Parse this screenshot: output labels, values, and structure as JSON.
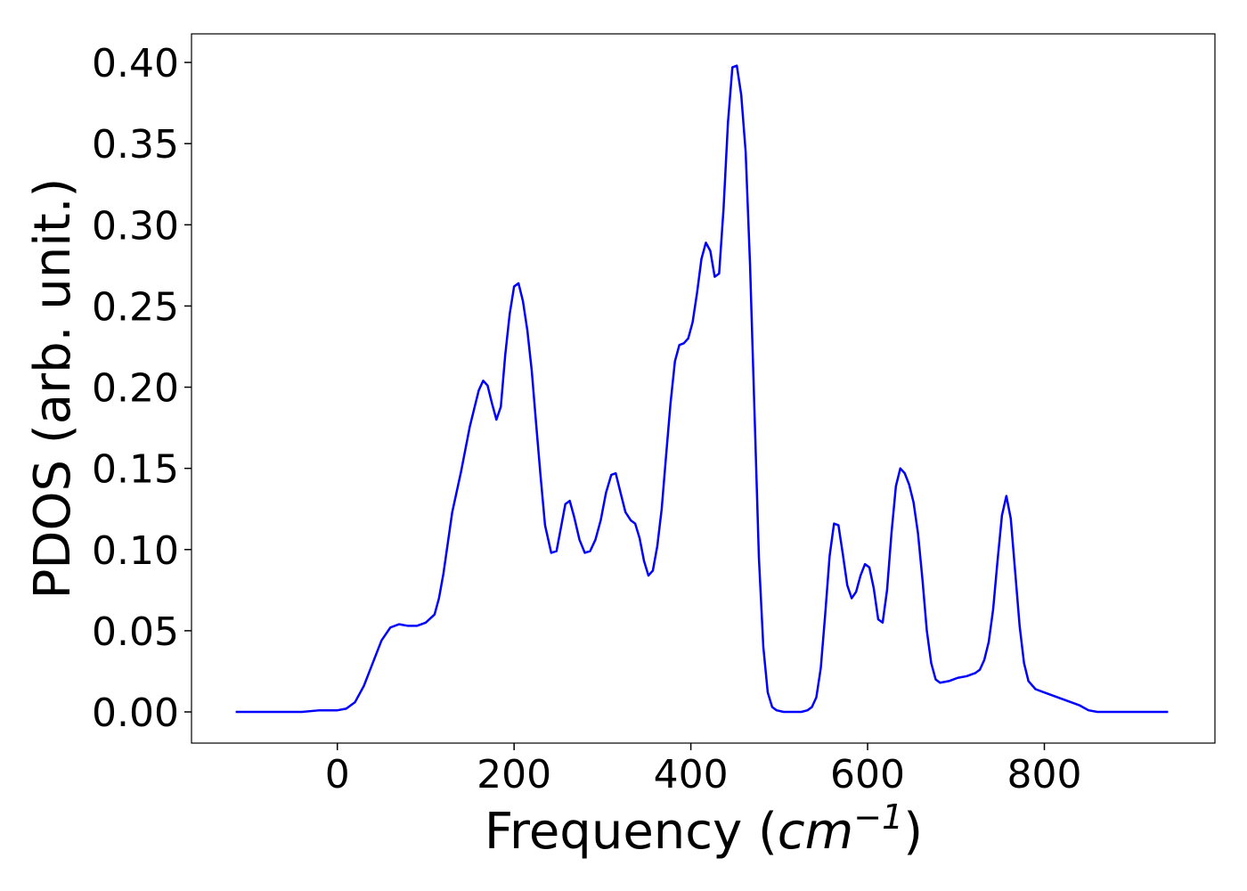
{
  "chart_data": {
    "type": "line",
    "xlabel": [
      "Frequency (",
      "cm",
      "−1",
      ")"
    ],
    "ylabel": "PDOS (arb. unit.)",
    "color": "#0000ff",
    "x": [
      -115,
      -40,
      -20,
      0,
      10,
      20,
      30,
      40,
      50,
      60,
      70,
      80,
      90,
      100,
      110,
      115,
      120,
      130,
      140,
      150,
      160,
      165,
      170,
      175,
      180,
      185,
      190,
      195,
      200,
      205,
      210,
      215,
      220,
      225,
      230,
      235,
      242,
      248,
      258,
      263,
      268,
      274,
      280,
      286,
      292,
      298,
      304,
      310,
      315,
      320,
      326,
      332,
      337,
      342,
      347,
      352,
      357,
      362,
      367,
      372,
      377,
      382,
      387,
      392,
      397,
      402,
      407,
      412,
      417,
      422,
      427,
      432,
      437,
      442,
      447,
      452,
      457,
      462,
      467,
      472,
      477,
      482,
      487,
      492,
      497,
      505,
      525,
      532,
      537,
      542,
      547,
      552,
      557,
      562,
      567,
      572,
      577,
      582,
      587,
      592,
      597,
      602,
      607,
      612,
      617,
      622,
      627,
      632,
      637,
      642,
      647,
      652,
      657,
      662,
      667,
      672,
      677,
      682,
      692,
      702,
      712,
      722,
      727,
      732,
      737,
      742,
      747,
      752,
      757,
      762,
      767,
      772,
      777,
      782,
      790,
      800,
      820,
      840,
      850,
      860,
      940
    ],
    "values": [
      0,
      0,
      0.001,
      0.001,
      0.002,
      0.006,
      0.016,
      0.03,
      0.044,
      0.052,
      0.054,
      0.053,
      0.053,
      0.055,
      0.06,
      0.07,
      0.085,
      0.123,
      0.148,
      0.176,
      0.198,
      0.204,
      0.201,
      0.19,
      0.18,
      0.188,
      0.22,
      0.245,
      0.262,
      0.264,
      0.253,
      0.235,
      0.21,
      0.177,
      0.145,
      0.115,
      0.098,
      0.099,
      0.128,
      0.13,
      0.12,
      0.106,
      0.098,
      0.099,
      0.106,
      0.118,
      0.135,
      0.146,
      0.147,
      0.136,
      0.123,
      0.118,
      0.116,
      0.107,
      0.093,
      0.084,
      0.087,
      0.102,
      0.125,
      0.158,
      0.19,
      0.216,
      0.226,
      0.227,
      0.23,
      0.24,
      0.258,
      0.279,
      0.289,
      0.284,
      0.268,
      0.27,
      0.31,
      0.363,
      0.397,
      0.398,
      0.38,
      0.345,
      0.275,
      0.185,
      0.095,
      0.04,
      0.012,
      0.003,
      0.001,
      0,
      0,
      0.001,
      0.003,
      0.009,
      0.027,
      0.06,
      0.096,
      0.116,
      0.115,
      0.097,
      0.078,
      0.07,
      0.074,
      0.084,
      0.091,
      0.089,
      0.076,
      0.057,
      0.055,
      0.075,
      0.11,
      0.139,
      0.15,
      0.147,
      0.14,
      0.129,
      0.11,
      0.082,
      0.05,
      0.03,
      0.02,
      0.018,
      0.019,
      0.021,
      0.022,
      0.024,
      0.026,
      0.032,
      0.043,
      0.063,
      0.093,
      0.121,
      0.133,
      0.119,
      0.086,
      0.053,
      0.03,
      0.019,
      0.014,
      0.012,
      0.008,
      0.004,
      0.001,
      0,
      0
    ],
    "xlim": [
      -165,
      993
    ],
    "ylim": [
      -0.0192,
      0.4176
    ],
    "xticks": [
      0,
      200,
      400,
      600,
      800
    ],
    "yticks": [
      {
        "value": 0,
        "label": "0.00"
      },
      {
        "value": 0.05,
        "label": "0.05"
      },
      {
        "value": 0.1,
        "label": "0.10"
      },
      {
        "value": 0.15,
        "label": "0.15"
      },
      {
        "value": 0.2,
        "label": "0.20"
      },
      {
        "value": 0.25,
        "label": "0.25"
      },
      {
        "value": 0.3,
        "label": "0.30"
      },
      {
        "value": 0.35,
        "label": "0.35"
      },
      {
        "value": 0.4,
        "label": "0.40"
      }
    ],
    "grid": false
  }
}
